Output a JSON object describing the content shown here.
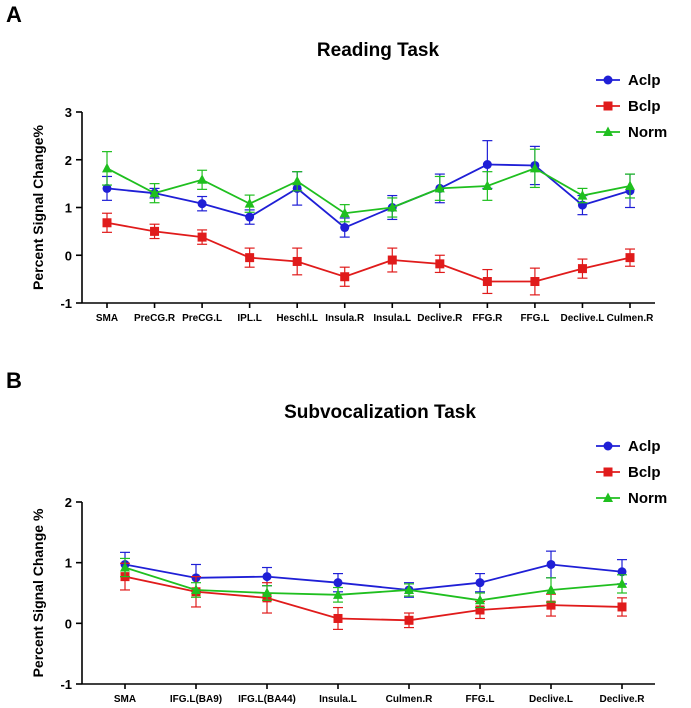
{
  "chart_data": [
    {
      "type": "line",
      "panel_label": "A",
      "title": "Reading Task",
      "xlabel": "",
      "ylabel": "Percent Signal Change%",
      "ylim": [
        -1,
        3
      ],
      "yticks": [
        -1,
        0,
        1,
        2,
        3
      ],
      "categories": [
        "SMA",
        "PreCG.R",
        "PreCG.L",
        "IPL.L",
        "Heschl.L",
        "Insula.R",
        "Insula.L",
        "Declive.R",
        "FFG.R",
        "FFG.L",
        "Declive.L",
        "Culmen.R"
      ],
      "legend_position": "top-right",
      "series": [
        {
          "name": "Aclp",
          "color": "#1f1fd6",
          "marker": "circle",
          "values": [
            1.4,
            1.3,
            1.08,
            0.8,
            1.4,
            0.58,
            1.0,
            1.4,
            1.9,
            1.88,
            1.05,
            1.35
          ],
          "errors": [
            0.25,
            0.1,
            0.15,
            0.15,
            0.35,
            0.2,
            0.25,
            0.3,
            0.5,
            0.4,
            0.2,
            0.35
          ]
        },
        {
          "name": "Bclp",
          "color": "#e01b1b",
          "marker": "square",
          "values": [
            0.68,
            0.5,
            0.38,
            -0.05,
            -0.13,
            -0.45,
            -0.1,
            -0.18,
            -0.55,
            -0.55,
            -0.28,
            -0.05
          ],
          "errors": [
            0.2,
            0.15,
            0.15,
            0.2,
            0.28,
            0.2,
            0.25,
            0.18,
            0.25,
            0.28,
            0.2,
            0.18
          ]
        },
        {
          "name": "Norm",
          "color": "#1fbf1f",
          "marker": "triangle",
          "values": [
            1.82,
            1.3,
            1.58,
            1.08,
            1.55,
            0.88,
            1.0,
            1.4,
            1.45,
            1.82,
            1.25,
            1.45
          ],
          "errors": [
            0.35,
            0.2,
            0.2,
            0.18,
            0.2,
            0.18,
            0.2,
            0.25,
            0.3,
            0.4,
            0.15,
            0.25
          ]
        }
      ]
    },
    {
      "type": "line",
      "panel_label": "B",
      "title": "Subvocalization Task",
      "xlabel": "",
      "ylabel": "Percent Signal Change %",
      "ylim": [
        -1,
        2
      ],
      "yticks": [
        -1,
        0,
        1,
        2
      ],
      "categories": [
        "SMA",
        "IFG.L(BA9)",
        "IFG.L(BA44)",
        "Insula.L",
        "Culmen.R",
        "FFG.L",
        "Declive.L",
        "Declive.R"
      ],
      "legend_position": "top-right",
      "series": [
        {
          "name": "Aclp",
          "color": "#1f1fd6",
          "marker": "circle",
          "values": [
            0.97,
            0.75,
            0.77,
            0.67,
            0.55,
            0.67,
            0.97,
            0.85
          ],
          "errors": [
            0.2,
            0.22,
            0.15,
            0.15,
            0.12,
            0.15,
            0.22,
            0.2
          ]
        },
        {
          "name": "Bclp",
          "color": "#e01b1b",
          "marker": "square",
          "values": [
            0.77,
            0.52,
            0.42,
            0.08,
            0.05,
            0.22,
            0.3,
            0.27
          ],
          "errors": [
            0.22,
            0.25,
            0.25,
            0.18,
            0.12,
            0.14,
            0.18,
            0.15
          ]
        },
        {
          "name": "Norm",
          "color": "#1fbf1f",
          "marker": "triangle",
          "values": [
            0.92,
            0.55,
            0.5,
            0.47,
            0.55,
            0.38,
            0.55,
            0.65
          ],
          "errors": [
            0.15,
            0.12,
            0.12,
            0.12,
            0.1,
            0.12,
            0.2,
            0.15
          ]
        }
      ]
    }
  ]
}
